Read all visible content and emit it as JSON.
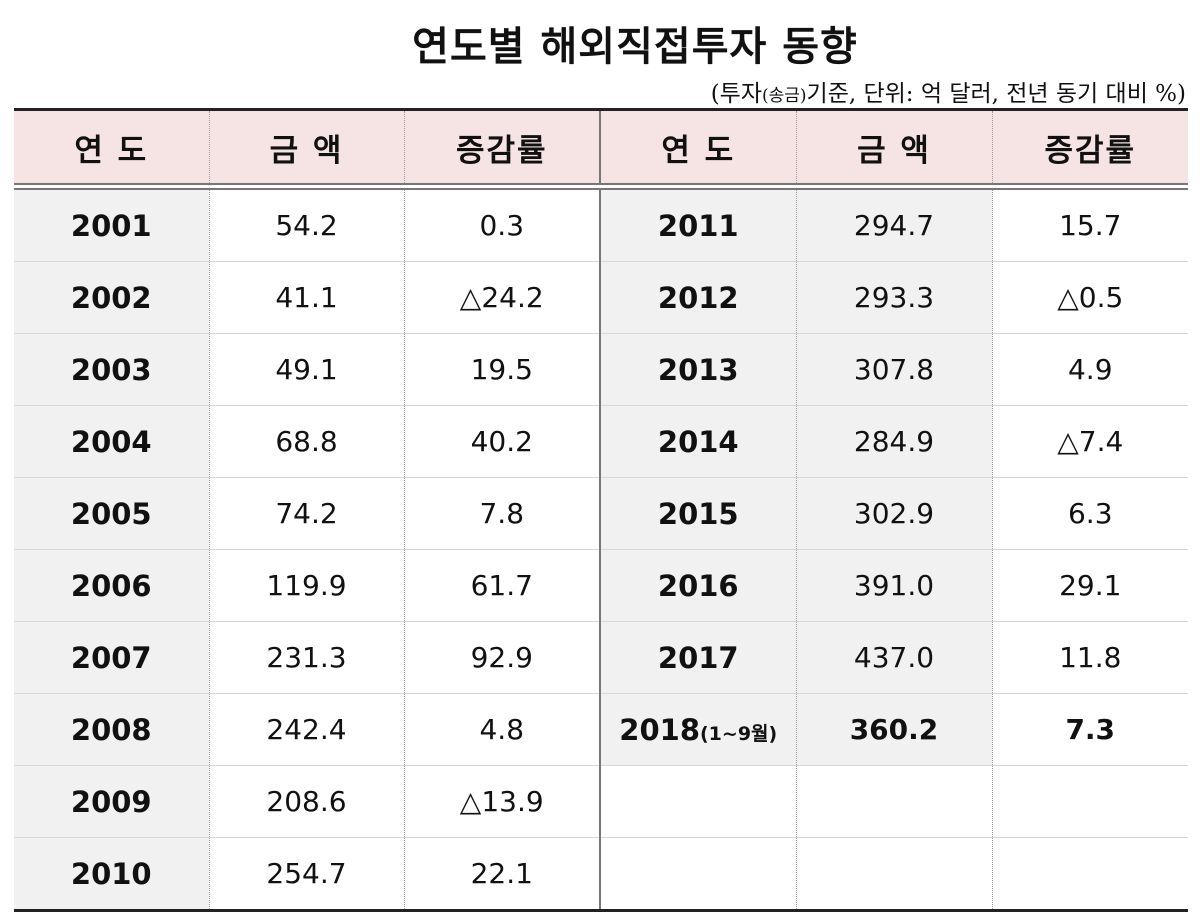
{
  "title": "연도별 해외직접투자 동향",
  "subtitle": {
    "pre": "(투자",
    "small": "(송금)",
    "post": "기준, 단위: 억 달러, 전년 동기 대비 %)"
  },
  "table": {
    "headers": [
      "연 도",
      "금 액",
      "증감률",
      "연 도",
      "금 액",
      "증감률"
    ],
    "left_rows": [
      {
        "year": "2001",
        "amount": "54.2",
        "rate": "0.3"
      },
      {
        "year": "2002",
        "amount": "41.1",
        "rate": "△24.2"
      },
      {
        "year": "2003",
        "amount": "49.1",
        "rate": "19.5"
      },
      {
        "year": "2004",
        "amount": "68.8",
        "rate": "40.2"
      },
      {
        "year": "2005",
        "amount": "74.2",
        "rate": "7.8"
      },
      {
        "year": "2006",
        "amount": "119.9",
        "rate": "61.7"
      },
      {
        "year": "2007",
        "amount": "231.3",
        "rate": "92.9"
      },
      {
        "year": "2008",
        "amount": "242.4",
        "rate": "4.8"
      },
      {
        "year": "2009",
        "amount": "208.6",
        "rate": "△13.9"
      },
      {
        "year": "2010",
        "amount": "254.7",
        "rate": "22.1"
      }
    ],
    "right_rows": [
      {
        "year": "2011",
        "amount": "294.7",
        "rate": "15.7"
      },
      {
        "year": "2012",
        "amount": "293.3",
        "rate": "△0.5"
      },
      {
        "year": "2013",
        "amount": "307.8",
        "rate": "4.9"
      },
      {
        "year": "2014",
        "amount": "284.9",
        "rate": "△7.4"
      },
      {
        "year": "2015",
        "amount": "302.9",
        "rate": "6.3"
      },
      {
        "year": "2016",
        "amount": "391.0",
        "rate": "29.1"
      },
      {
        "year": "2017",
        "amount": "437.0",
        "rate": "11.8"
      },
      {
        "year": "2018",
        "year_note": "(1~9월)",
        "amount": "360.2",
        "rate": "7.3"
      }
    ]
  }
}
